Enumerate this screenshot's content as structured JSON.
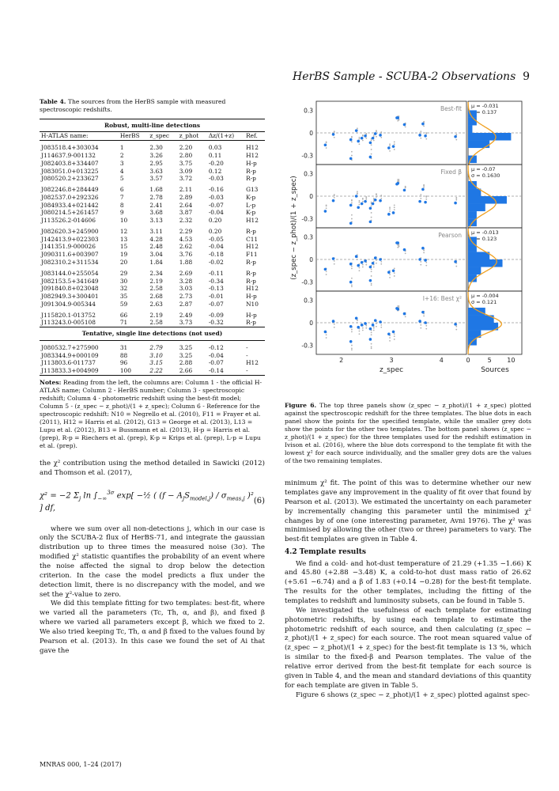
{
  "header": {
    "running_title": "HerBS Sample - SCUBA-2 Observations",
    "page_number": "9"
  },
  "table4": {
    "caption_label": "Table 4.",
    "caption_text": "The sources from the HerBS sample with measured spectroscopic redshifts.",
    "section_robust": "Robust, multi-line detections",
    "section_tentative": "Tentative, single line detections (not used)",
    "columns": [
      "H-ATLAS name:",
      "HerBS",
      "z_spec",
      "z_phot",
      "Δz/(1+z)",
      "Ref."
    ],
    "robust_groups": [
      [
        [
          "J083518.4+303034",
          "1",
          "2.30",
          "2.20",
          "0.03",
          "H12"
        ],
        [
          "J114637.9-001132",
          "2",
          "3.26",
          "2.80",
          "0.11",
          "H12"
        ],
        [
          "J082403.8+334407",
          "3",
          "2.95",
          "3.75",
          "-0.20",
          "H-p"
        ],
        [
          "J083051.0+013225",
          "4",
          "3.63",
          "3.09",
          "0.12",
          "R-p"
        ],
        [
          "J080520.2+233627",
          "5",
          "3.57",
          "3.72",
          "-0.03",
          "R-p"
        ]
      ],
      [
        [
          "J082246.8+284449",
          "6",
          "1.68",
          "2.11",
          "-0.16",
          "G13"
        ],
        [
          "J082537.0+292326",
          "7",
          "2.78",
          "2.89",
          "-0.03",
          "K-p"
        ],
        [
          "J084933.4+021442",
          "8",
          "2.41",
          "2.64",
          "-0.07",
          "L-p"
        ],
        [
          "J080214.5+261457",
          "9",
          "3.68",
          "3.87",
          "-0.04",
          "K-p"
        ],
        [
          "J113526.2-014606",
          "10",
          "3.13",
          "2.32",
          "0.20",
          "H12"
        ]
      ],
      [
        [
          "J082620.3+245900",
          "12",
          "3.11",
          "2.29",
          "0.20",
          "R-p"
        ],
        [
          "J142413.9+022303",
          "13",
          "4.28",
          "4.53",
          "-0.05",
          "C11"
        ],
        [
          "J141351.9-000026",
          "15",
          "2.48",
          "2.62",
          "-0.04",
          "H12"
        ],
        [
          "J090311.6+003907",
          "19",
          "3.04",
          "3.76",
          "-0.18",
          "F11"
        ],
        [
          "J082310.2+311534",
          "20",
          "1.84",
          "1.88",
          "-0.02",
          "R-p"
        ]
      ],
      [
        [
          "J083144.0+255054",
          "29",
          "2.34",
          "2.69",
          "-0.11",
          "R-p"
        ],
        [
          "J082153.5+341649",
          "30",
          "2.19",
          "3.28",
          "-0.34",
          "R-p"
        ],
        [
          "J091840.8+023048",
          "32",
          "2.58",
          "3.03",
          "-0.13",
          "H12"
        ],
        [
          "J082949.3+300401",
          "35",
          "2.68",
          "2.73",
          "-0.01",
          "H-p"
        ],
        [
          "J091304.9-005344",
          "59",
          "2.63",
          "2.87",
          "-0.07",
          "N10"
        ]
      ],
      [
        [
          "J115820.1-013752",
          "66",
          "2.19",
          "2.49",
          "-0.09",
          "H-p"
        ],
        [
          "J113243.0-005108",
          "71",
          "2.58",
          "3.73",
          "-0.32",
          "R-p"
        ]
      ]
    ],
    "tentative_rows": [
      [
        "J080532.7+275900",
        "31",
        "2.79",
        "3.25",
        "-0.12",
        "-"
      ],
      [
        "J083344.9+000109",
        "88",
        "3.10",
        "3.25",
        "-0.04",
        "-"
      ],
      [
        "J113803.6-011737",
        "96",
        "3.15",
        "2.88",
        "-0.07",
        "H12"
      ],
      [
        "J113833.3+004909",
        "100",
        "2.22",
        "2.66",
        "-0.14",
        "-"
      ]
    ],
    "notes_label": "Notes:",
    "notes_text": "Reading from the left, the columns are: Column 1 - the official H-ATLAS name; Column 2 - HerBS number; Column 3 - spectroscopic redshift; Column 4 - photometric redshift using the best-fit model; Column 5 - (z_spec − z_phot)/(1 + z_spec); Column 6 - Reference for the spectroscopic redshift: N10 = Negrello et al. (2010), F11 = Frayer et al. (2011), H12 = Harris et al. (2012), G13 = George et al. (2013), L13 = Lupu et al. (2012), B13 = Bussmann et al. (2013), H-p = Harris et al. (prep), R-p = Riechers et al. (prep), K-p = Krips et al. (prep), L-p = Lupu et al. (prep)."
  },
  "left_body": {
    "intro": "the χ² contribution using the method detailed in Sawicki (2012) and Thomson et al. (2017),",
    "equation_number": "(6)",
    "paragraphs": [
      "where we sum over all non-detections j, which in our case is only the SCUBA-2 flux of HerBS-71, and integrate the gaussian distribution up to three times the measured noise (3σ). The modified χ² statistic quantifies the probability of an event where the noise affected the signal to drop below the detection criterion. In the case the model predicts a flux under the detection limit, there is no discrepancy with the model, and we set the χ²-value to zero.",
      "We did this template fitting for two templates: best-fit, where we varied all the parameters (Tc, Th, α, and β), and fixed β where we varied all parameters except β, which we fixed to 2. We also tried keeping Tc, Th, α and β fixed to the values found by Pearson et al. (2013). In this case we found the set of Ai that gave the"
    ]
  },
  "figure6": {
    "ylabel": "(z_spec − z_phot)/(1 + z_spec)",
    "xlabel_main": "z_spec",
    "xlabel_hist": "Sources",
    "x_ticks": [
      "2",
      "3",
      "4"
    ],
    "hist_ticks": [
      "0",
      "5",
      "10"
    ],
    "y_ticks": [
      "0.3",
      "0",
      "-0.3"
    ],
    "panels": [
      {
        "label": "Best-fit",
        "mu": "μ = -0.031",
        "sigma": "σ = 0.137"
      },
      {
        "label": "Fixed β",
        "mu": "μ = -0.07",
        "sigma": "σ = 0.1630"
      },
      {
        "label": "Pearson",
        "mu": "μ = -0.013",
        "sigma": "σ = 0.123"
      },
      {
        "label": "I+16: Best χ²",
        "mu": "μ = -0.004",
        "sigma": "σ = 0.121"
      }
    ],
    "caption_label": "Figure 6.",
    "caption_text": "The top three panels show (z_spec − z_phot)/(1 + z_spec) plotted against the spectroscopic redshift for the three templates. The blue dots in each panel show the points for the specified template, while the smaller grey dots show the points for the other two templates. The bottom panel shows (z_spec − z_phot)/(1 + z_spec) for the three templates used for the redshift estimation in Ivison et al. (2016), where the blue dots correspond to the template fit with the lowest χ² for each source individually, and the smaller grey dots are the values of the two remaining templates."
  },
  "chart_data": {
    "type": "scatter",
    "xlabel": "z_spec",
    "ylabel": "(z_spec − z_phot)/(1 + z_spec)",
    "xlim": [
      1.5,
      4.5
    ],
    "ylim": [
      -0.42,
      0.42
    ],
    "x": [
      2.3,
      3.26,
      2.95,
      3.63,
      3.57,
      1.68,
      2.78,
      2.41,
      3.68,
      3.13,
      3.11,
      4.28,
      2.48,
      3.04,
      1.84,
      2.34,
      2.19,
      2.58,
      2.68,
      2.63,
      2.19,
      2.58
    ],
    "series": [
      {
        "name": "Best-fit",
        "values": [
          0.03,
          0.11,
          -0.2,
          0.12,
          -0.03,
          -0.16,
          -0.03,
          -0.07,
          -0.04,
          0.2,
          0.2,
          -0.05,
          -0.04,
          -0.18,
          -0.02,
          -0.11,
          -0.34,
          -0.13,
          -0.01,
          -0.07,
          -0.09,
          -0.32
        ]
      },
      {
        "name": "Fixed β",
        "values": [
          0.0,
          0.08,
          -0.24,
          0.09,
          -0.07,
          -0.2,
          -0.06,
          -0.1,
          -0.08,
          0.17,
          0.16,
          -0.09,
          -0.07,
          -0.22,
          -0.06,
          -0.15,
          -0.36,
          -0.16,
          -0.05,
          -0.1,
          -0.12,
          -0.34
        ]
      },
      {
        "name": "Pearson",
        "values": [
          0.04,
          0.13,
          -0.17,
          0.15,
          0.0,
          -0.13,
          0.0,
          -0.04,
          -0.01,
          0.22,
          0.22,
          -0.03,
          -0.02,
          -0.15,
          0.01,
          -0.08,
          -0.3,
          -0.1,
          0.02,
          -0.05,
          -0.06,
          -0.28
        ]
      },
      {
        "name": "I+16: Best χ²",
        "values": [
          0.06,
          0.12,
          -0.15,
          0.14,
          0.02,
          -0.12,
          0.01,
          -0.03,
          0.0,
          0.18,
          0.19,
          -0.02,
          -0.01,
          -0.12,
          0.02,
          -0.06,
          -0.25,
          -0.08,
          0.03,
          -0.03,
          -0.05,
          -0.22
        ]
      }
    ]
  },
  "right_body": {
    "paragraphs_sec1": [
      "minimum χ² fit. The point of this was to determine whether our new templates gave any improvement in the quality of fit over that found by Pearson et al. (2013). We estimated the uncertainty on each parameter by incrementally changing this parameter until the minimised χ² changes by of one (one interesting parameter, Avni 1976). The χ² was minimised by allowing the other (two or three) parameters to vary. The best-fit templates are given in Table 4."
    ],
    "section_heading": "4.2   Template results",
    "paragraphs_sec2": [
      "We find a cold- and hot-dust temperature of 21.29 (+1.35 −1.66) K and 45.80 (+2.88 −3.48) K, a cold-to-hot dust mass ratio of 26.62 (+5.61 −6.74) and a β of 1.83 (+0.14 −0.28) for the best-fit template. The results for the other templates, including the fitting of the templates to redshift and luminosity subsets, can be found in Table 5.",
      "We investigated the usefulness of each template for estimating photometric redshifts, by using each template to estimate the photometric redshift of each source, and then calculating (z_spec − z_phot)/(1 + z_spec) for each source. The root mean squared value of (z_spec − z_phot)/(1 + z_spec) for the best-fit template is 13 %, which is similar to the fixed-β and Pearson templates. The value of the relative error derived from the best-fit template for each source is given in Table 4, and the mean and standard deviations of this quantity for each template are given in Table 5.",
      "Figure 6 shows (z_spec − z_phot)/(1 + z_spec) plotted against spec-"
    ]
  },
  "footer": {
    "text": "MNRAS 000, 1–24 (2017)"
  }
}
